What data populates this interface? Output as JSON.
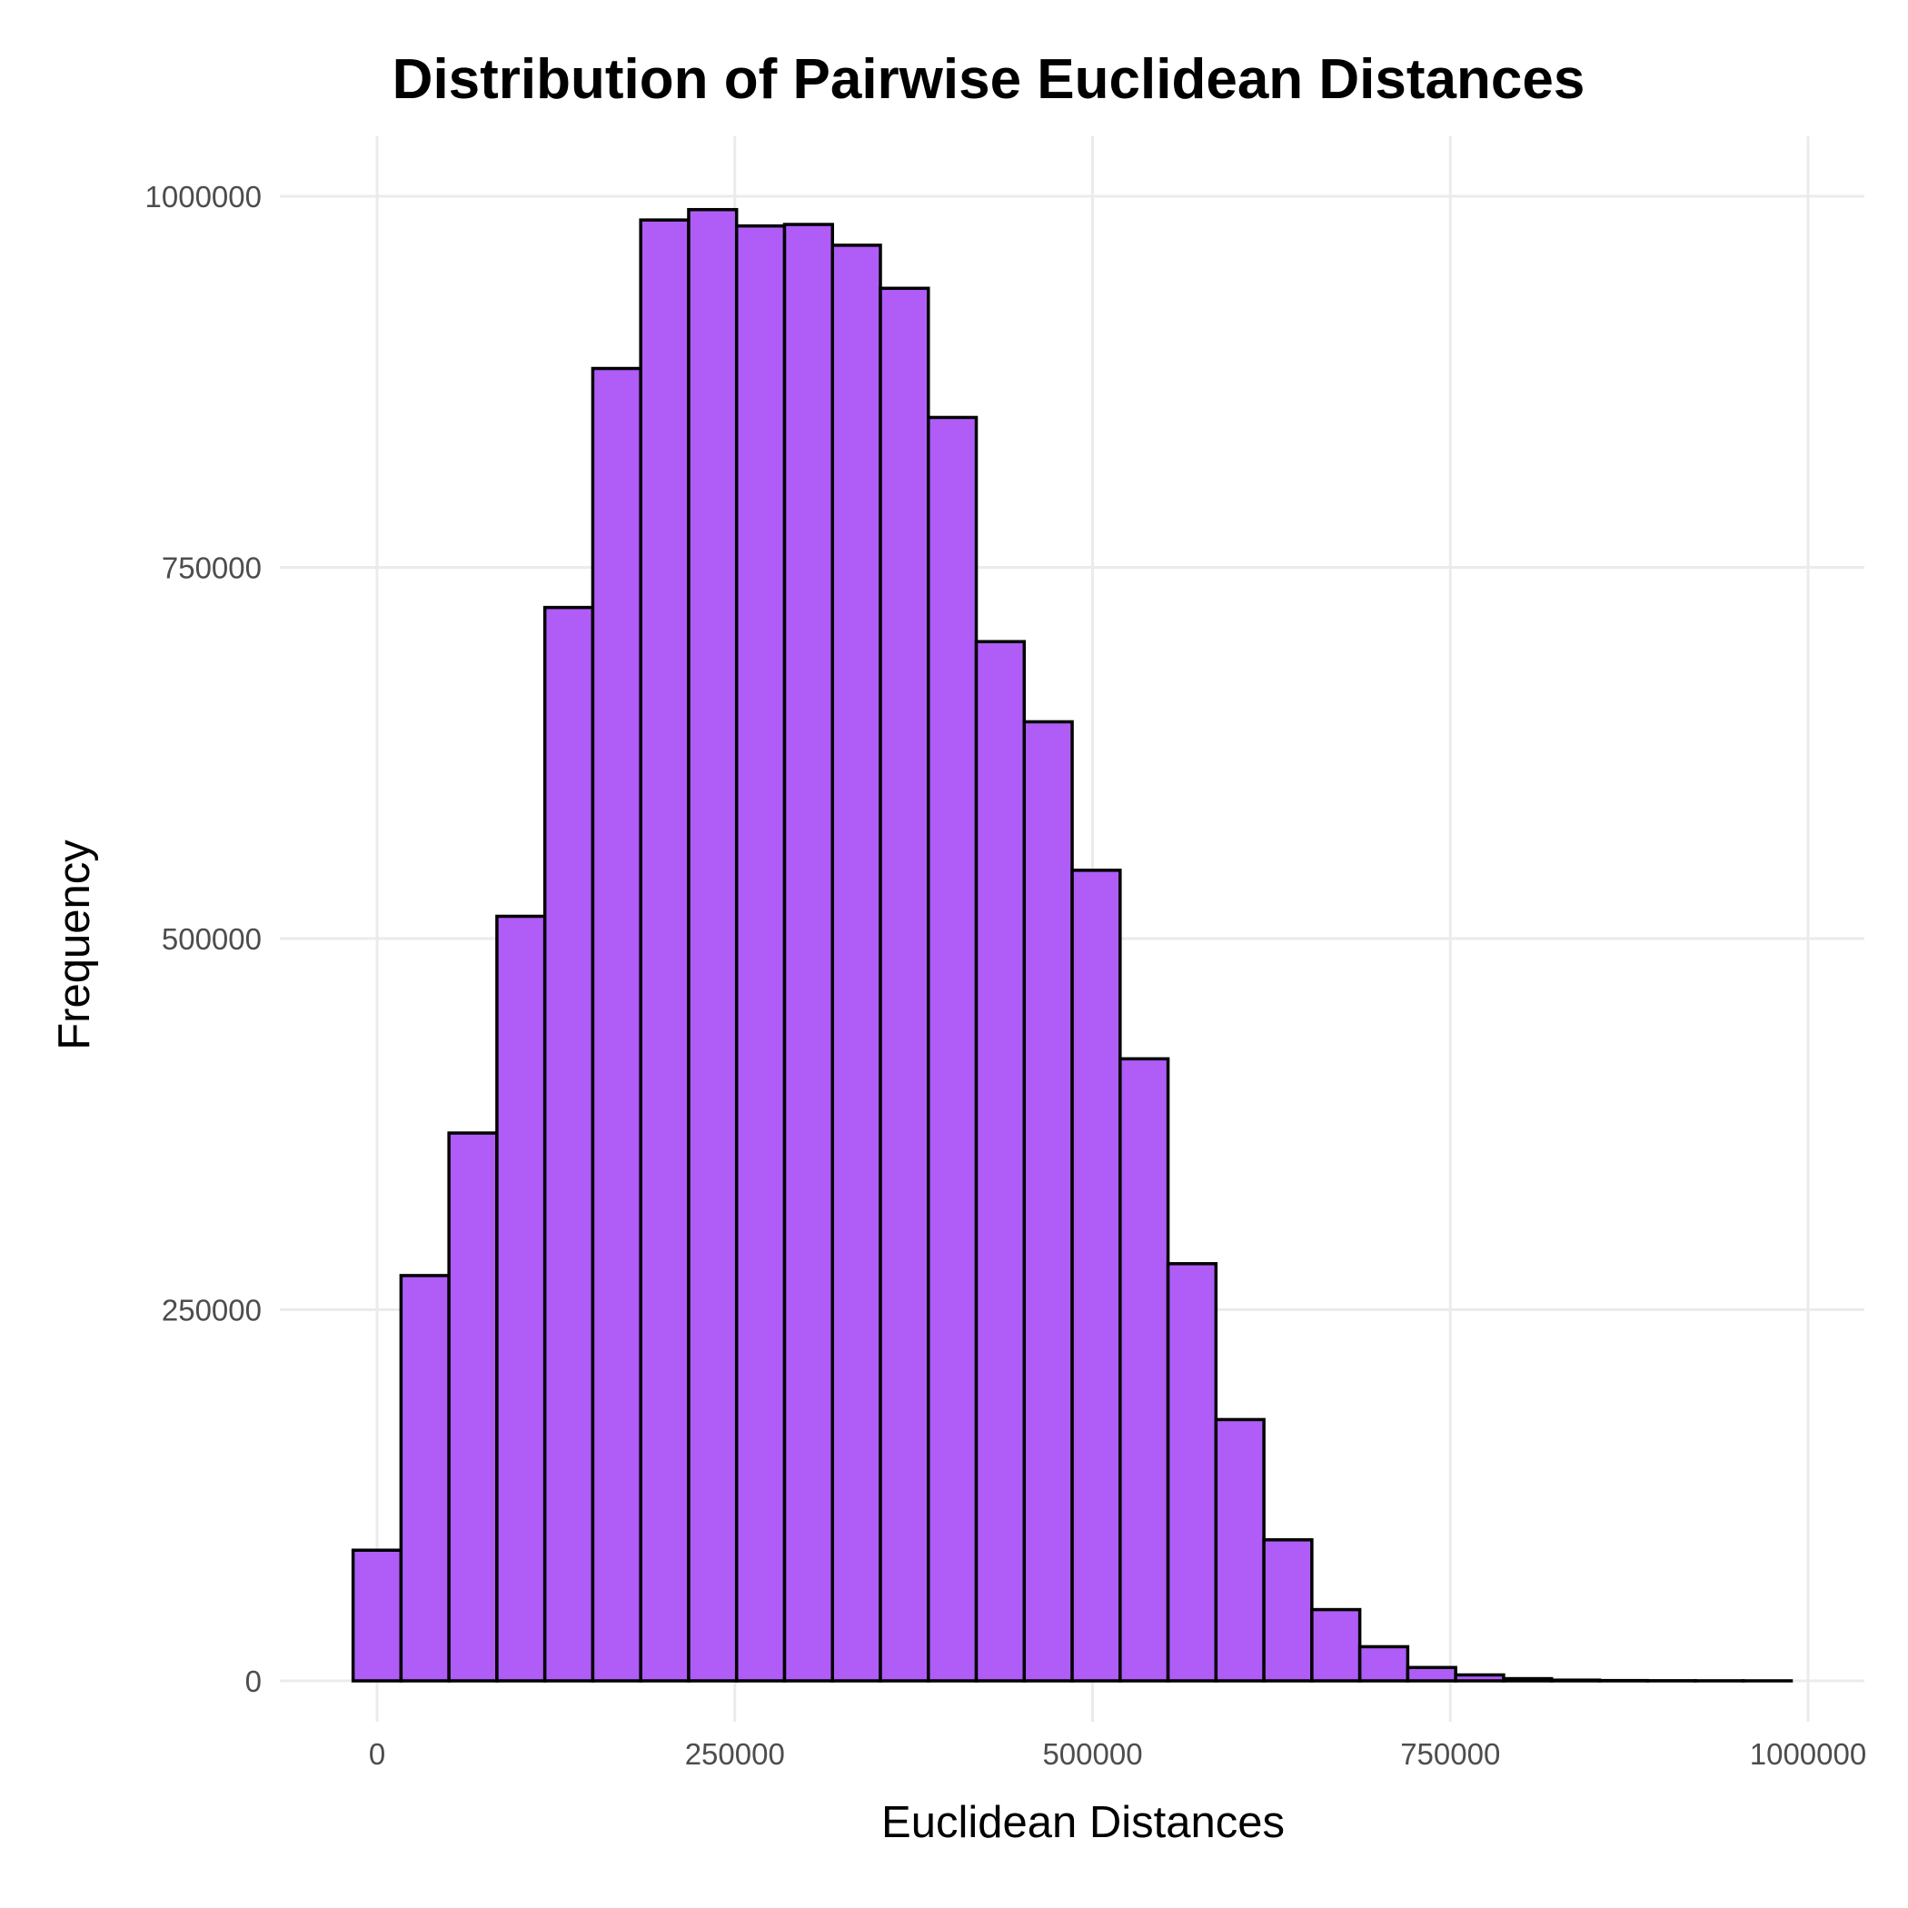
{
  "chart_data": {
    "type": "bar",
    "title": "Distribution of Pairwise Euclidean Distances",
    "xlabel": "Euclidean Distances",
    "ylabel": "Frequency",
    "xlim": [
      -33000,
      1020000
    ],
    "ylim": [
      -30000,
      1040000
    ],
    "x_ticks": [
      0,
      250000,
      500000,
      750000,
      1000000
    ],
    "x_tick_labels": [
      "0",
      "250000",
      "500000",
      "750000",
      "1000000"
    ],
    "y_ticks": [
      0,
      250000,
      500000,
      750000,
      1000000
    ],
    "y_tick_labels": [
      "0",
      "250000",
      "500000",
      "750000",
      "1000000"
    ],
    "grid": true,
    "legend": "none",
    "bar_color": "#B05CF7",
    "bar_edge_color": "#000000",
    "bin_width": 33500,
    "bins": [
      {
        "x0": -16750,
        "x1": 16750,
        "count": 88000
      },
      {
        "x0": 16750,
        "x1": 50250,
        "count": 273000
      },
      {
        "x0": 50250,
        "x1": 83750,
        "count": 369000
      },
      {
        "x0": 83750,
        "x1": 117250,
        "count": 515000
      },
      {
        "x0": 117250,
        "x1": 150750,
        "count": 723000
      },
      {
        "x0": 150750,
        "x1": 184250,
        "count": 884000
      },
      {
        "x0": 184250,
        "x1": 217750,
        "count": 984000
      },
      {
        "x0": 217750,
        "x1": 251250,
        "count": 991000
      },
      {
        "x0": 251250,
        "x1": 284750,
        "count": 980000
      },
      {
        "x0": 284750,
        "x1": 318250,
        "count": 981000
      },
      {
        "x0": 318250,
        "x1": 351750,
        "count": 967000
      },
      {
        "x0": 351750,
        "x1": 385250,
        "count": 938000
      },
      {
        "x0": 385250,
        "x1": 418750,
        "count": 851000
      },
      {
        "x0": 418750,
        "x1": 452250,
        "count": 700000
      },
      {
        "x0": 452250,
        "x1": 485750,
        "count": 646000
      },
      {
        "x0": 485750,
        "x1": 519250,
        "count": 546000
      },
      {
        "x0": 519250,
        "x1": 552750,
        "count": 419000
      },
      {
        "x0": 552750,
        "x1": 586250,
        "count": 281000
      },
      {
        "x0": 586250,
        "x1": 619750,
        "count": 176000
      },
      {
        "x0": 619750,
        "x1": 653250,
        "count": 95000
      },
      {
        "x0": 653250,
        "x1": 686750,
        "count": 48000
      },
      {
        "x0": 686750,
        "x1": 720250,
        "count": 23000
      },
      {
        "x0": 720250,
        "x1": 753750,
        "count": 9000
      },
      {
        "x0": 753750,
        "x1": 787250,
        "count": 4000
      },
      {
        "x0": 787250,
        "x1": 820750,
        "count": 1500
      },
      {
        "x0": 820750,
        "x1": 854250,
        "count": 500
      },
      {
        "x0": 854250,
        "x1": 887750,
        "count": 200
      },
      {
        "x0": 887750,
        "x1": 921250,
        "count": 100
      },
      {
        "x0": 921250,
        "x1": 954750,
        "count": 50
      },
      {
        "x0": 954750,
        "x1": 988250,
        "count": 20
      }
    ]
  }
}
